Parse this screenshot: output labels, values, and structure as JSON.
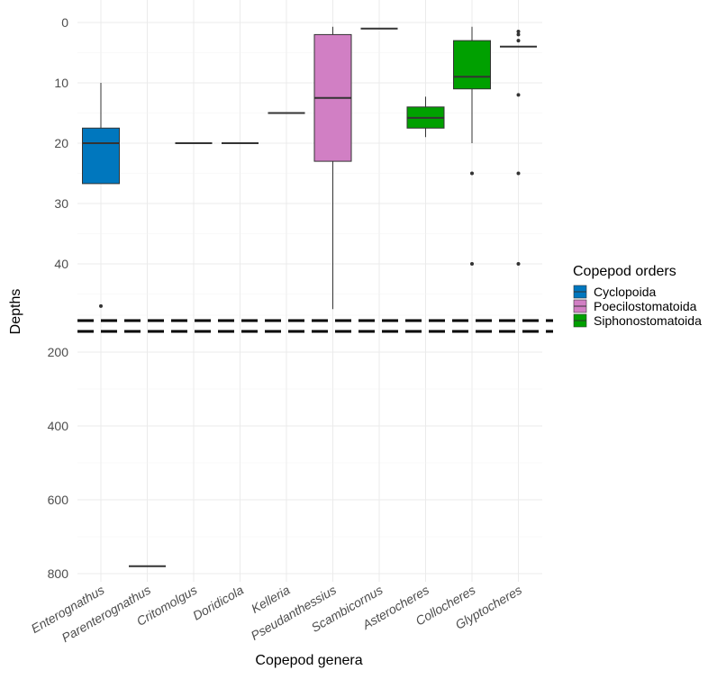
{
  "chart_data": {
    "type": "box",
    "xlabel": "Copepod genera",
    "ylabel": "Depths",
    "y_axis": "reversed, split into two panels joined by a dashed break",
    "upper_panel": {
      "ylim": [
        0,
        48
      ],
      "ticks": [
        0,
        10,
        20,
        30,
        40
      ]
    },
    "lower_panel": {
      "ylim": [
        100,
        800
      ],
      "ticks": [
        200,
        400,
        600,
        800
      ]
    },
    "grid": true,
    "legend": {
      "title": "Copepod orders",
      "position": "right",
      "entries": [
        {
          "name": "Cyclopoida",
          "color": "#0077be"
        },
        {
          "name": "Poecilostomatoida",
          "color": "#d17fc4"
        },
        {
          "name": "Siphonostomatoida",
          "color": "#00a000"
        }
      ]
    },
    "categories": [
      "Enterognathus",
      "Parenterognathus",
      "Critomolgus",
      "Doridicola",
      "Kelleria",
      "Pseudanthessius",
      "Scambicornus",
      "Asterocheres",
      "Collocheres",
      "Glyptocheres"
    ],
    "boxes": [
      {
        "genus": "Enterognathus",
        "order": "Cyclopoida",
        "panel": "upper",
        "min": 10,
        "q1": 17.5,
        "median": 20,
        "q3": 26.7,
        "max": 26.7,
        "outliers": [
          47
        ]
      },
      {
        "genus": "Parenterognathus",
        "order": "Cyclopoida",
        "panel": "lower",
        "min": 780,
        "q1": 780,
        "median": 780,
        "q3": 780,
        "max": 780,
        "outliers": []
      },
      {
        "genus": "Critomolgus",
        "order": "Poecilostomatoida",
        "panel": "upper",
        "min": 20,
        "q1": 20,
        "median": 20,
        "q3": 20,
        "max": 20,
        "outliers": []
      },
      {
        "genus": "Doridicola",
        "order": "Poecilostomatoida",
        "panel": "upper",
        "min": 20,
        "q1": 20,
        "median": 20,
        "q3": 20,
        "max": 20,
        "outliers": []
      },
      {
        "genus": "Kelleria",
        "order": "Poecilostomatoida",
        "panel": "upper",
        "min": 15,
        "q1": 15,
        "median": 15,
        "q3": 15,
        "max": 15,
        "outliers": []
      },
      {
        "genus": "Pseudanthessius",
        "order": "Poecilostomatoida",
        "panel": "upper",
        "min": 0.7,
        "q1": 2,
        "median": 12.5,
        "q3": 23,
        "max": 47.5,
        "outliers": []
      },
      {
        "genus": "Scambicornus",
        "order": "Poecilostomatoida",
        "panel": "upper",
        "min": 1,
        "q1": 1,
        "median": 1,
        "q3": 1,
        "max": 1,
        "outliers": []
      },
      {
        "genus": "Asterocheres",
        "order": "Siphonostomatoida",
        "panel": "upper",
        "min": 12.3,
        "q1": 14,
        "median": 15.8,
        "q3": 17.5,
        "max": 19,
        "outliers": []
      },
      {
        "genus": "Collocheres",
        "order": "Siphonostomatoida",
        "panel": "upper",
        "min": 0.7,
        "q1": 3,
        "median": 9,
        "q3": 11,
        "max": 20,
        "outliers": [
          25,
          40
        ]
      },
      {
        "genus": "Glyptocheres",
        "order": "Siphonostomatoida",
        "panel": "upper",
        "min": 4,
        "q1": 4,
        "median": 4,
        "q3": 4,
        "max": 4,
        "outliers": [
          1.5,
          2,
          3,
          12,
          25,
          40
        ]
      }
    ]
  }
}
